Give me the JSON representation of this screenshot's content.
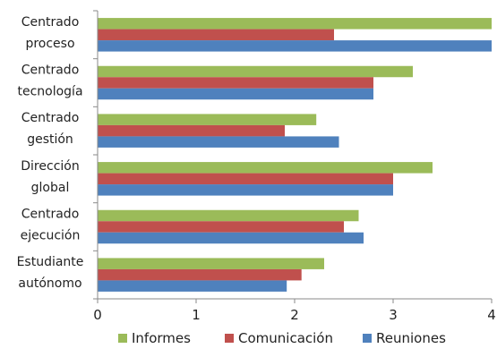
{
  "chart_data": {
    "type": "bar",
    "orientation": "horizontal",
    "categories": [
      [
        "Centrado",
        "proceso"
      ],
      [
        "Centrado",
        "tecnología"
      ],
      [
        "Centrado",
        "gestión"
      ],
      [
        "Dirección",
        "global"
      ],
      [
        "Centrado",
        "ejecución"
      ],
      [
        "Estudiante",
        "autónomo"
      ]
    ],
    "series": [
      {
        "name": "Informes",
        "color": "#9bbb59",
        "values": [
          4.0,
          3.2,
          2.22,
          3.4,
          2.65,
          2.3
        ]
      },
      {
        "name": "Comunicación",
        "color": "#c0504d",
        "values": [
          2.4,
          2.8,
          1.9,
          3.0,
          2.5,
          2.07
        ]
      },
      {
        "name": "Reuniones",
        "color": "#4f81bd",
        "values": [
          4.0,
          2.8,
          2.45,
          3.0,
          2.7,
          1.92
        ]
      }
    ],
    "xlim": [
      0,
      4
    ],
    "xticks": [
      "0",
      "1",
      "2",
      "3",
      "4"
    ],
    "grid": false,
    "legend_position": "bottom"
  }
}
